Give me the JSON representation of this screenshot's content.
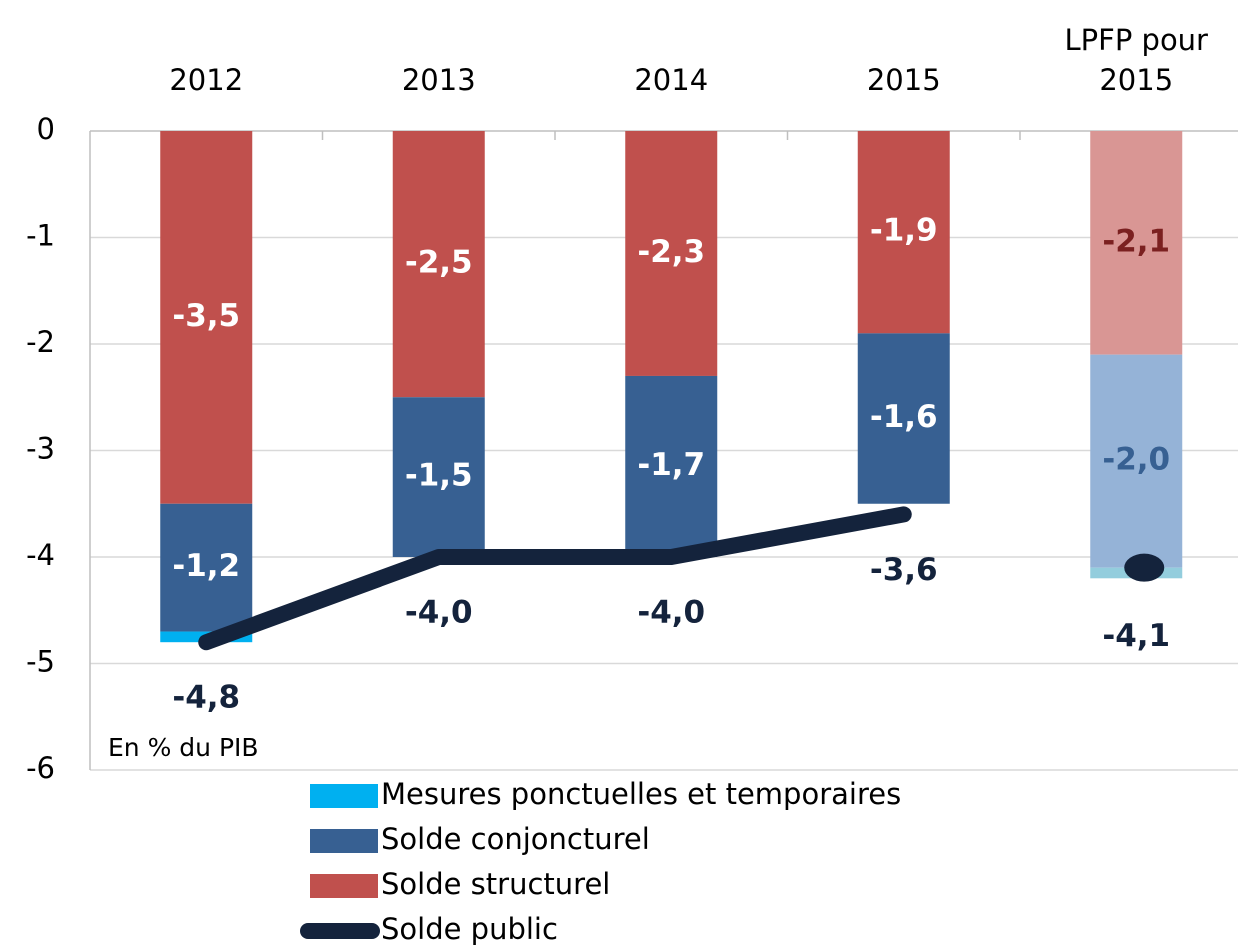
{
  "chart_data": {
    "type": "stacked_bar_line",
    "categories": [
      "2012",
      "2013",
      "2014",
      "2015",
      "LPFP pour 2015"
    ],
    "annotation": "En % du PIB",
    "ylim": [
      -6,
      0
    ],
    "yticks": [
      0,
      -1,
      -2,
      -3,
      -4,
      -5,
      -6
    ],
    "grid": true,
    "forecast_from": 4,
    "series": [
      {
        "name": "Mesures ponctuelles et temporaires",
        "kind": "bar",
        "color": "#00b0f0",
        "forecast_color": "#93cddd",
        "values": [
          -0.1,
          0,
          0,
          0,
          -0.1
        ]
      },
      {
        "name": "Solde conjoncturel",
        "kind": "bar",
        "color": "#376092",
        "forecast_color": "#95b3d7",
        "label_color": "#ffffff",
        "forecast_label_color": "#376092",
        "values": [
          -1.2,
          -1.5,
          -1.7,
          -1.6,
          -2.0
        ],
        "value_labels": [
          "-1,2",
          "-1,5",
          "-1,7",
          "-1,6",
          "-2,0"
        ]
      },
      {
        "name": "Solde structurel",
        "kind": "bar",
        "color": "#c0504d",
        "forecast_color": "#d99694",
        "label_color": "#ffffff",
        "forecast_label_color": "#7b2020",
        "values": [
          -3.5,
          -2.5,
          -2.3,
          -1.9,
          -2.1
        ],
        "value_labels": [
          "-3,5",
          "-2,5",
          "-2,3",
          "-1,9",
          "-2,1"
        ]
      },
      {
        "name": "Solde public",
        "kind": "line",
        "color": "#14233c",
        "label_color": "#14233c",
        "values": [
          -4.8,
          -4.0,
          -4.0,
          -3.6,
          -4.1
        ],
        "value_labels": [
          "-4,8",
          "-4,0",
          "-4,0",
          "-3,6",
          "-4,1"
        ]
      }
    ]
  }
}
